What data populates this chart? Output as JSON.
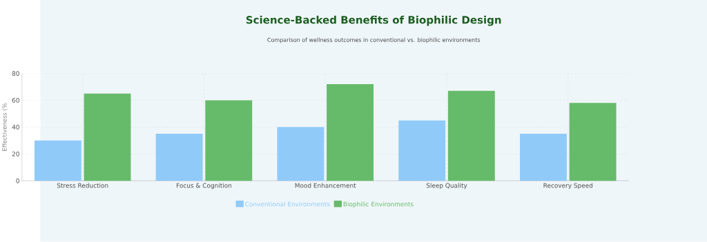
{
  "chart_data": {
    "type": "bar",
    "title": "Science-Backed Benefits of Biophilic Design",
    "subtitle": "Comparison of wellness outcomes in conventional vs. biophilic environments",
    "ylabel": "Effectiveness (%",
    "categories": [
      "Stress Reduction",
      "Focus & Cognition",
      "Mood Enhancement",
      "Sleep Quality",
      "Recovery Speed"
    ],
    "series": [
      {
        "name": "Conventional Environments",
        "color": "#90caf9",
        "values": [
          30,
          35,
          40,
          45,
          35
        ]
      },
      {
        "name": "Biophilic Environments",
        "color": "#66bb6a",
        "values": [
          65,
          60,
          72,
          67,
          58
        ]
      }
    ],
    "ylim": [
      0,
      80
    ],
    "yticks": [
      0,
      20,
      40,
      60,
      80
    ],
    "grid": true,
    "legend": "bottom"
  }
}
